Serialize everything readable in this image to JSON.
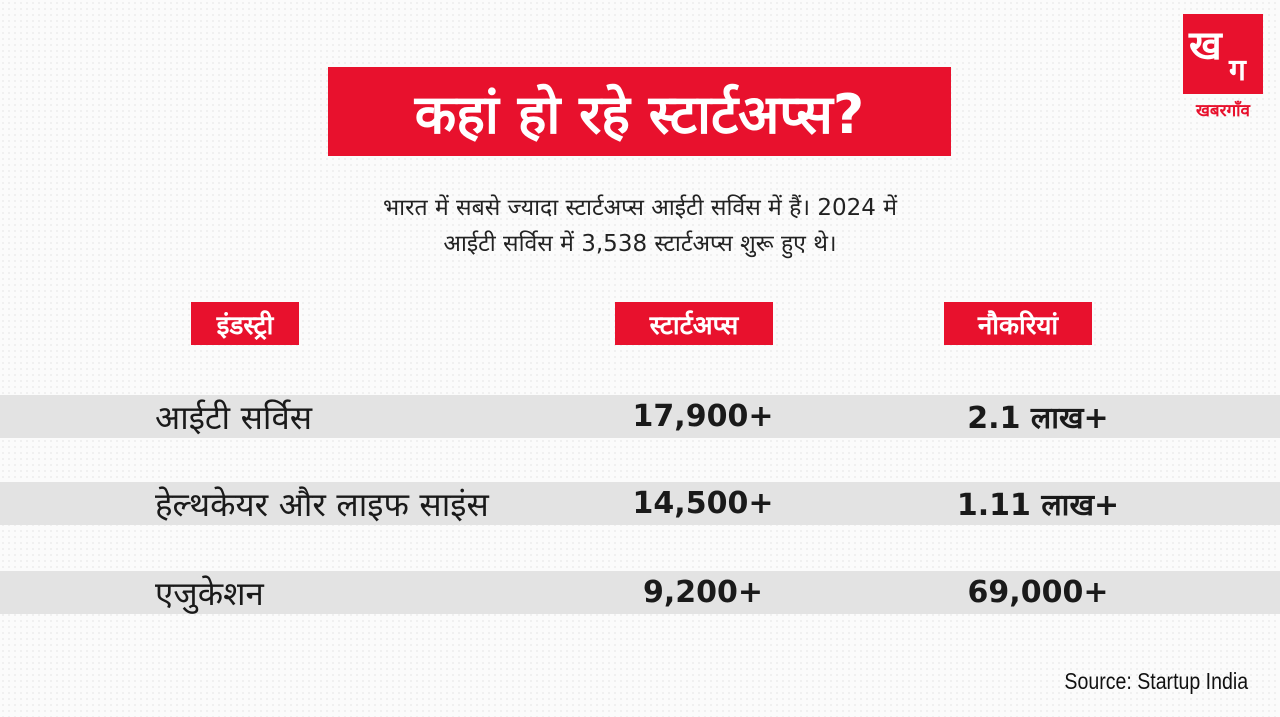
{
  "logo": {
    "letters": [
      "ख",
      "ग"
    ],
    "text": "खबरगाँव"
  },
  "header": {
    "title": "कहां हो रहे स्टार्टअप्स?",
    "subtitle": [
      "भारत में सबसे ज्यादा स्टार्टअप्स आईटी सर्विस में हैं। 2024 में",
      "आईटी सर्विस में 3,538 स्टार्टअप्स शुरू हुए थे।"
    ]
  },
  "table": {
    "columns": [
      "इंडस्ट्री",
      "स्टार्टअप्स",
      "नौकरियां"
    ],
    "rows": [
      [
        "आईटी सर्विस",
        "17,900+",
        "2.1 लाख+"
      ],
      [
        "हेल्थकेयर और लाइफ साइंस",
        "14,500+",
        "1.11 लाख+"
      ],
      [
        "एजुकेशन",
        "9,200+",
        "69,000+"
      ]
    ]
  },
  "source": "Source: Startup India"
}
